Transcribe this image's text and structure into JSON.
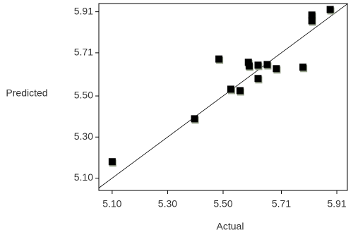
{
  "chart_data": {
    "type": "scatter",
    "x_label": "Actual",
    "y_label": "Predicted",
    "x": [
      5.1,
      5.397,
      5.485,
      5.528,
      5.561,
      5.591,
      5.594,
      5.626,
      5.626,
      5.659,
      5.692,
      5.788,
      5.82,
      5.82,
      5.886
    ],
    "values": [
      5.18,
      5.389,
      5.68,
      5.533,
      5.526,
      5.664,
      5.646,
      5.65,
      5.585,
      5.653,
      5.633,
      5.64,
      5.894,
      5.866,
      5.921
    ],
    "color": "#000000",
    "xlim": [
      5.052,
      5.948
    ],
    "ylim": [
      5.04,
      5.95
    ],
    "xticks": [
      {
        "value": 5.1,
        "label": "5.10"
      },
      {
        "value": 5.3,
        "label": "5.30"
      },
      {
        "value": 5.5,
        "label": "5.50"
      },
      5.71,
      5.91
    ],
    "yticks": [
      {
        "value": 5.1,
        "label": "5.10"
      },
      {
        "value": 5.3,
        "label": "5.30"
      },
      {
        "value": 5.5,
        "label": "5.50"
      },
      5.71,
      5.91
    ],
    "identity_line": true
  }
}
